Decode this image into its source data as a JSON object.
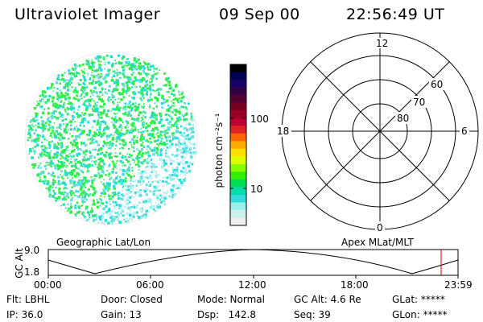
{
  "header": {
    "instrument": "Ultraviolet Imager",
    "date": "09 Sep 00",
    "time": "22:56:49 UT"
  },
  "colorbar": {
    "unit": "photon cm⁻²s⁻¹",
    "ticks": [
      "100",
      "10"
    ],
    "colors": [
      "#000000",
      "#000055",
      "#1a0066",
      "#330044",
      "#550033",
      "#770022",
      "#990022",
      "#bb0033",
      "#dd2222",
      "#ff6600",
      "#ffaa00",
      "#ffe000",
      "#ddff00",
      "#88ff00",
      "#33ee00",
      "#00dd55",
      "#00ddaa",
      "#33dddd",
      "#99eeee",
      "#cceeee",
      "#eeeeee"
    ]
  },
  "polar_grid": {
    "mlt_labels": [
      "12",
      "18",
      "6",
      "0"
    ],
    "lat_labels": [
      "60",
      "70",
      "80"
    ]
  },
  "timeline": {
    "left_label": "Geographic Lat/Lon",
    "right_label": "Apex MLat/MLT",
    "y_axis_title": "GC Alt",
    "y_ticks": [
      "9.0",
      "1.8"
    ],
    "x_ticks": [
      "00:00",
      "06:00",
      "12:00",
      "18:00",
      "23:59"
    ],
    "marker_color": "#cc0000"
  },
  "status": {
    "flt": "Flt: LBHL",
    "ip": "IP: 36.0",
    "door": "Door: Closed",
    "gain": "Gain: 13",
    "mode": "Mode: Normal",
    "dsp": "Dsp:   142.8",
    "gcalt": "GC Alt: 4.6 Re",
    "seq": "Seq: 39",
    "glat": "GLat: *****",
    "glon": "GLon: *****"
  },
  "disk_colors": [
    "#33ee44",
    "#33ee44",
    "#33dd99",
    "#22dddd",
    "#66dddd",
    "#99eeee",
    "#cceeee",
    "#88dd22"
  ]
}
